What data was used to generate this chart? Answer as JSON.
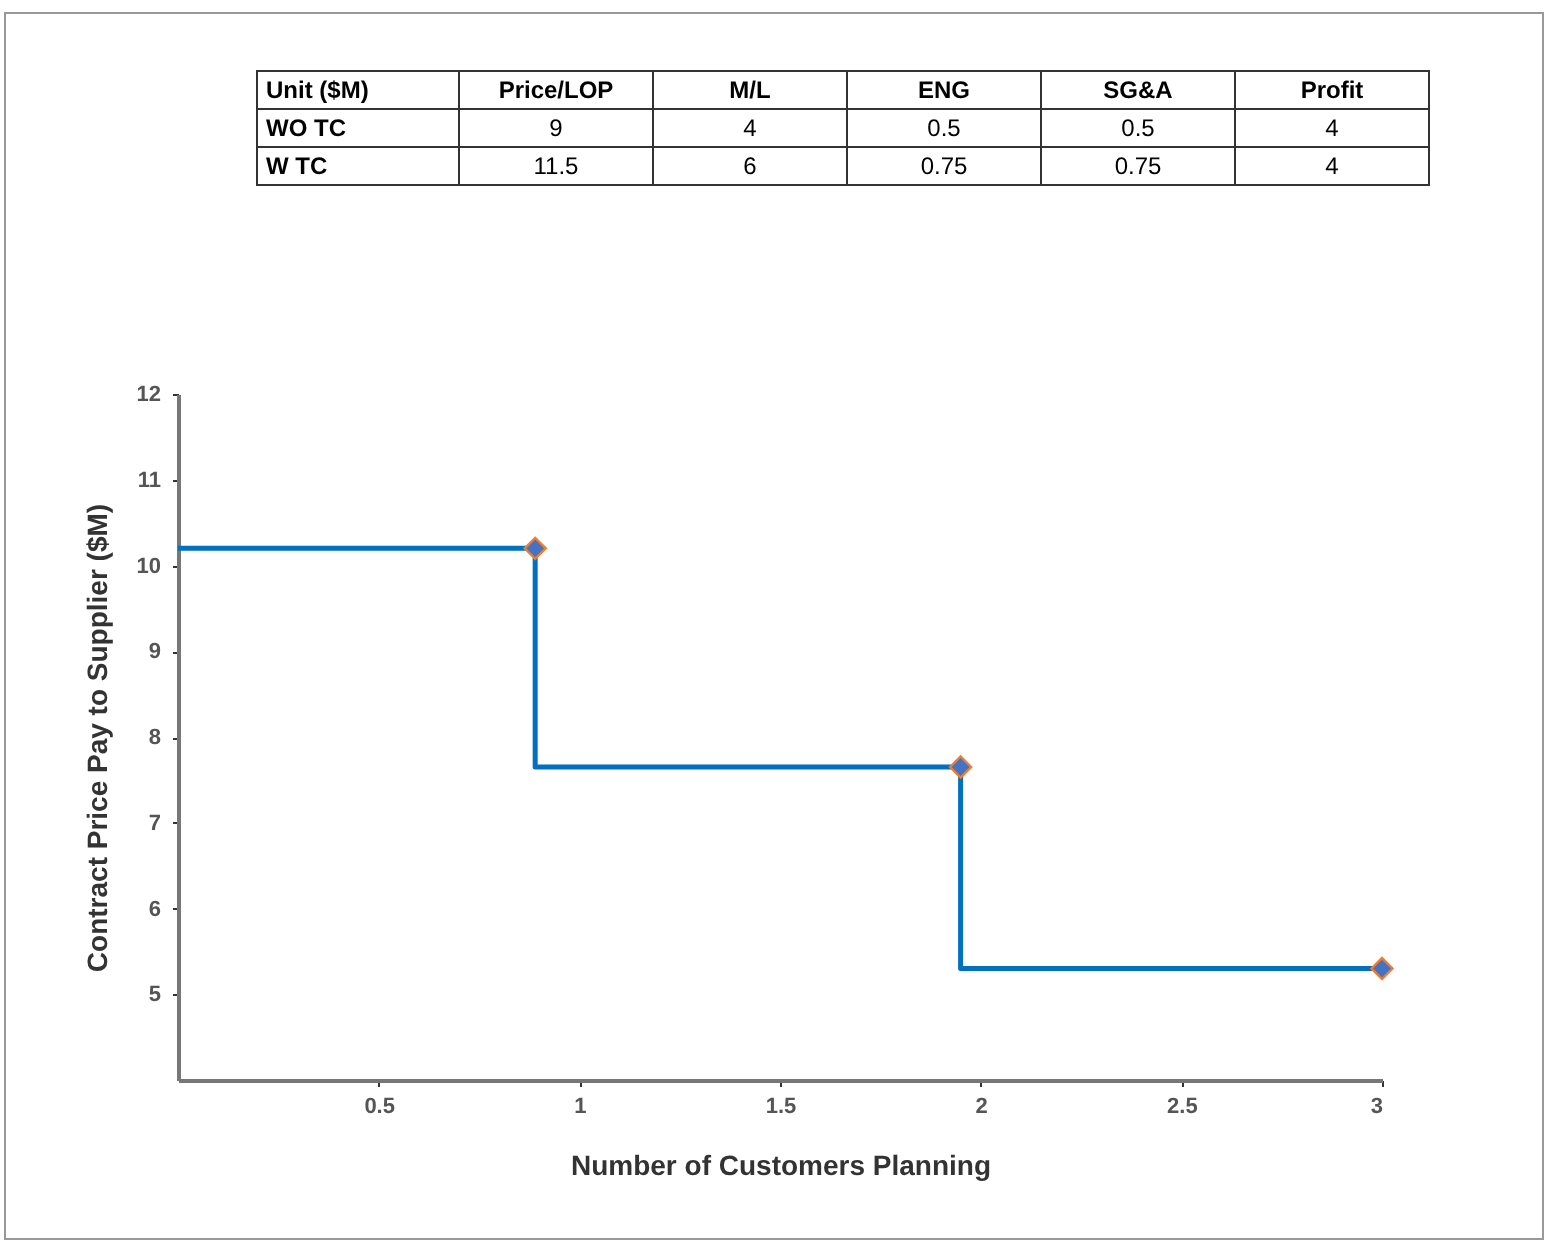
{
  "chart_data": {
    "type": "step",
    "xlabel": "Number of Customers Planning",
    "ylabel": "Contract Price Pay to Supplier ($M)",
    "xlim": [
      0,
      3
    ],
    "xticks": [
      0.5,
      1,
      1.5,
      2,
      2.5,
      3
    ],
    "ylim": [
      4,
      12
    ],
    "yticks": [
      5,
      6,
      7,
      8,
      9,
      10,
      11,
      12
    ],
    "grid": false,
    "line_style": "solid",
    "series": [
      {
        "color": "#0070c0",
        "marker": "none",
        "x": [
          0,
          0.89,
          1.95,
          3
        ],
        "values": [
          10.2,
          10.2,
          7.65,
          5.3
        ]
      },
      {
        "type": "scatter",
        "color": "#4472c4",
        "marker": "diamond",
        "x": [
          0.89,
          1.95,
          3
        ],
        "values": [
          10.2,
          7.65,
          5.3
        ]
      }
    ],
    "annotations": [
      "Unit ($M)",
      "Price/LOP",
      "M/L",
      "ENG",
      "SG&A",
      "Profit",
      "WO TC",
      "9",
      "4",
      "0.5",
      "0.5",
      "4",
      "W TC",
      "11.5",
      "6",
      "0.75",
      "0.75",
      "4"
    ]
  }
}
